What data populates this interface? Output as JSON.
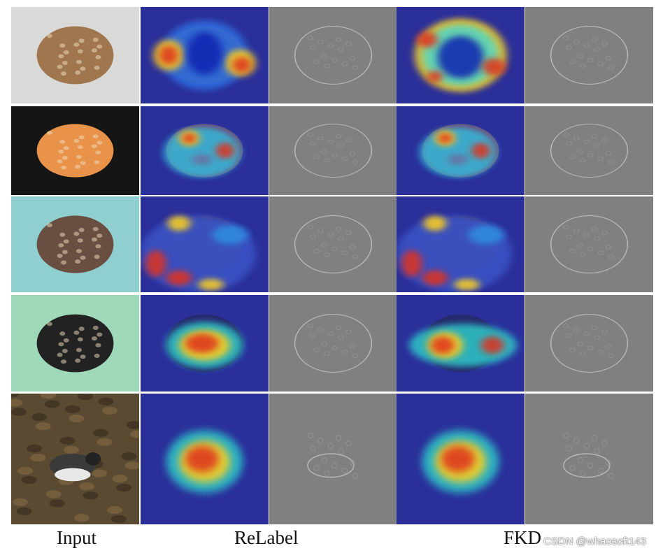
{
  "columns": [
    "Input",
    "ReLabel",
    "FKD"
  ],
  "watermark": "CSDN @whaosoft143",
  "rows": [
    {
      "subject": "stingray",
      "input_bg": "#d9d9d7",
      "input_obj": "#a0764e",
      "relabel_heat": "sides",
      "fkd_heat": "ring"
    },
    {
      "subject": "stingray",
      "input_bg": "#151515",
      "input_obj": "#e8924a",
      "relabel_heat": "spots",
      "fkd_heat": "spots"
    },
    {
      "subject": "stingray",
      "input_bg": "#8fcfcf",
      "input_obj": "#6a4e42",
      "relabel_heat": "scattered",
      "fkd_heat": "scattered"
    },
    {
      "subject": "stingray",
      "input_bg": "#9fd9b9",
      "input_obj": "#222222",
      "relabel_heat": "center",
      "fkd_heat": "wide"
    },
    {
      "subject": "bird",
      "input_bg": "#5b4a32",
      "input_obj": "#2a2a2a",
      "relabel_heat": "center",
      "fkd_heat": "center"
    }
  ]
}
